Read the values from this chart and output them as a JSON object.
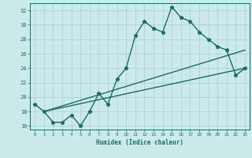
{
  "title": "",
  "xlabel": "Humidex (Indice chaleur)",
  "xlim": [
    -0.5,
    23.5
  ],
  "ylim": [
    15.5,
    33.0
  ],
  "background_color": "#cceaea",
  "grid_color": "#aad4d4",
  "line_color": "#1a6b6b",
  "line1_x": [
    0,
    1,
    2,
    3,
    4,
    5,
    6,
    7,
    8,
    9,
    10,
    11,
    12,
    13,
    14,
    15,
    16,
    17,
    18,
    19,
    20,
    21,
    22,
    23
  ],
  "line1_y": [
    19.0,
    18.0,
    16.5,
    16.5,
    17.5,
    16.0,
    18.0,
    20.5,
    19.0,
    22.5,
    24.0,
    28.5,
    30.5,
    29.5,
    29.0,
    32.5,
    31.0,
    30.5,
    29.0,
    28.0,
    27.0,
    26.5,
    23.0,
    24.0
  ],
  "line2_x": [
    1,
    23
  ],
  "line2_y": [
    18.0,
    26.5
  ],
  "line3_x": [
    1,
    23
  ],
  "line3_y": [
    18.0,
    24.0
  ],
  "ytick_values": [
    16,
    18,
    20,
    22,
    24,
    26,
    28,
    30,
    32
  ],
  "xtick_values": [
    0,
    1,
    2,
    3,
    4,
    5,
    6,
    7,
    8,
    9,
    10,
    11,
    12,
    13,
    14,
    15,
    16,
    17,
    18,
    19,
    20,
    21,
    22,
    23
  ],
  "marker": "*",
  "marker_size": 3.5,
  "linewidth": 1.0
}
